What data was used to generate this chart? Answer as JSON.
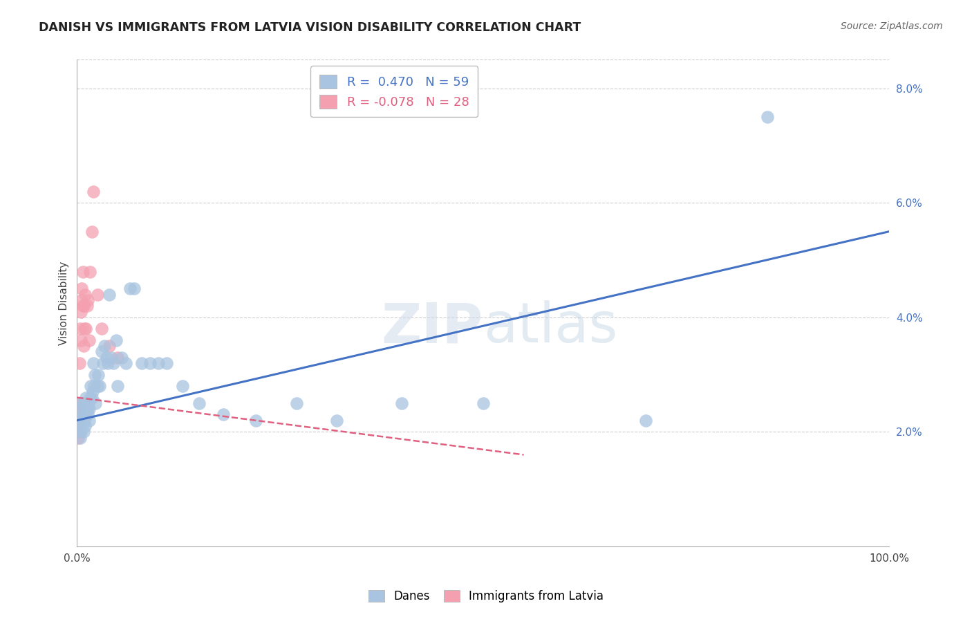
{
  "title": "DANISH VS IMMIGRANTS FROM LATVIA VISION DISABILITY CORRELATION CHART",
  "source": "Source: ZipAtlas.com",
  "ylabel": "Vision Disability",
  "watermark": "ZIPatlas",
  "danes_R": 0.47,
  "danes_N": 59,
  "latvia_R": -0.078,
  "latvia_N": 28,
  "xlim": [
    0.0,
    1.0
  ],
  "ylim": [
    0.0,
    0.085
  ],
  "yticks": [
    0.02,
    0.04,
    0.06,
    0.08
  ],
  "ytick_labels": [
    "2.0%",
    "4.0%",
    "6.0%",
    "8.0%"
  ],
  "xticks": [
    0.0,
    0.2,
    0.4,
    0.6,
    0.8,
    1.0
  ],
  "xtick_labels": [
    "0.0%",
    "",
    "",
    "",
    "",
    "100.0%"
  ],
  "blue_color": "#a8c4e0",
  "pink_color": "#f4a0b0",
  "blue_line_color": "#4472c4",
  "pink_line_color": "#e06080",
  "grid_color": "#cccccc",
  "background_color": "#ffffff",
  "danes_x": [
    0.002,
    0.003,
    0.004,
    0.005,
    0.005,
    0.006,
    0.006,
    0.007,
    0.008,
    0.008,
    0.009,
    0.01,
    0.01,
    0.011,
    0.012,
    0.013,
    0.013,
    0.014,
    0.015,
    0.015,
    0.016,
    0.017,
    0.018,
    0.019,
    0.02,
    0.021,
    0.022,
    0.023,
    0.025,
    0.026,
    0.028,
    0.03,
    0.032,
    0.034,
    0.036,
    0.038,
    0.04,
    0.042,
    0.045,
    0.048,
    0.05,
    0.055,
    0.06,
    0.065,
    0.07,
    0.08,
    0.09,
    0.1,
    0.11,
    0.13,
    0.15,
    0.18,
    0.22,
    0.27,
    0.32,
    0.4,
    0.5,
    0.7,
    0.85
  ],
  "danes_y": [
    0.022,
    0.021,
    0.019,
    0.024,
    0.02,
    0.022,
    0.025,
    0.023,
    0.02,
    0.025,
    0.022,
    0.024,
    0.021,
    0.026,
    0.025,
    0.024,
    0.023,
    0.025,
    0.024,
    0.022,
    0.026,
    0.028,
    0.026,
    0.027,
    0.032,
    0.028,
    0.03,
    0.025,
    0.028,
    0.03,
    0.028,
    0.034,
    0.032,
    0.035,
    0.033,
    0.032,
    0.044,
    0.033,
    0.032,
    0.036,
    0.028,
    0.033,
    0.032,
    0.045,
    0.045,
    0.032,
    0.032,
    0.032,
    0.032,
    0.028,
    0.025,
    0.023,
    0.022,
    0.025,
    0.022,
    0.025,
    0.025,
    0.022,
    0.075
  ],
  "latvia_x": [
    0.001,
    0.002,
    0.002,
    0.003,
    0.003,
    0.004,
    0.004,
    0.005,
    0.005,
    0.006,
    0.006,
    0.007,
    0.007,
    0.008,
    0.008,
    0.009,
    0.01,
    0.011,
    0.012,
    0.013,
    0.015,
    0.016,
    0.018,
    0.02,
    0.025,
    0.03,
    0.04,
    0.05
  ],
  "latvia_y": [
    0.019,
    0.02,
    0.022,
    0.025,
    0.032,
    0.024,
    0.038,
    0.036,
    0.041,
    0.043,
    0.045,
    0.042,
    0.048,
    0.042,
    0.035,
    0.038,
    0.044,
    0.038,
    0.042,
    0.043,
    0.036,
    0.048,
    0.055,
    0.062,
    0.044,
    0.038,
    0.035,
    0.033
  ],
  "blue_line_x0": 0.0,
  "blue_line_y0": 0.022,
  "blue_line_x1": 1.0,
  "blue_line_y1": 0.055,
  "pink_line_x0": 0.0,
  "pink_line_y0": 0.026,
  "pink_line_x1": 0.55,
  "pink_line_y1": 0.016
}
